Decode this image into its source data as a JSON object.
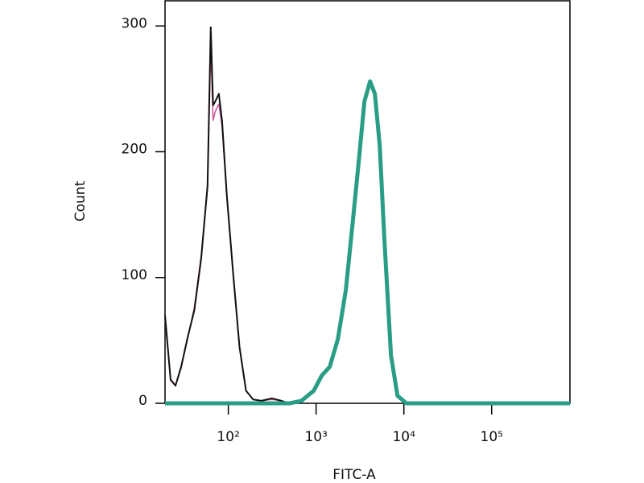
{
  "chart_data": {
    "type": "line",
    "x_label": "FITC-A",
    "y_label": "Count",
    "xscale": "log",
    "xlim": [
      19,
      780000
    ],
    "ylim": [
      0,
      320
    ],
    "xticks": [
      {
        "value": 100,
        "label": "10²"
      },
      {
        "value": 1000,
        "label": "10³"
      },
      {
        "value": 10000,
        "label": "10⁴"
      },
      {
        "value": 100000,
        "label": "10⁵"
      }
    ],
    "yticks": [
      0,
      100,
      200,
      300
    ],
    "series": [
      {
        "color": "#d0509a",
        "width": 1.5,
        "x": [
          19,
          22,
          25,
          29,
          34,
          41,
          49,
          58,
          63,
          67,
          71,
          78,
          85,
          96,
          114,
          134,
          159,
          192,
          238,
          313,
          403,
          500
        ],
        "values": [
          68,
          18,
          14,
          28,
          50,
          76,
          117,
          170,
          285,
          225,
          232,
          238,
          220,
          164,
          100,
          44,
          10,
          3,
          2,
          3,
          2,
          0
        ]
      },
      {
        "color": "#111111",
        "width": 2,
        "x": [
          19,
          22,
          25,
          29,
          34,
          41,
          49,
          58,
          63,
          67,
          71,
          78,
          85,
          96,
          114,
          134,
          159,
          192,
          238,
          313,
          403,
          500
        ],
        "values": [
          70,
          19,
          14,
          29,
          51,
          74,
          115,
          173,
          299,
          237,
          240,
          246,
          224,
          166,
          102,
          45,
          10,
          3,
          2,
          4,
          2,
          0
        ]
      },
      {
        "color": "#2a9d86",
        "width": 5,
        "x": [
          19,
          500,
          680,
          940,
          1160,
          1430,
          1770,
          2180,
          2590,
          3060,
          3550,
          4120,
          4680,
          5310,
          6030,
          7130,
          8460,
          10700,
          780000
        ],
        "values": [
          0,
          0,
          2,
          10,
          22,
          29,
          51,
          90,
          141,
          192,
          240,
          256,
          246,
          205,
          128,
          38,
          6,
          0,
          0
        ]
      }
    ]
  }
}
